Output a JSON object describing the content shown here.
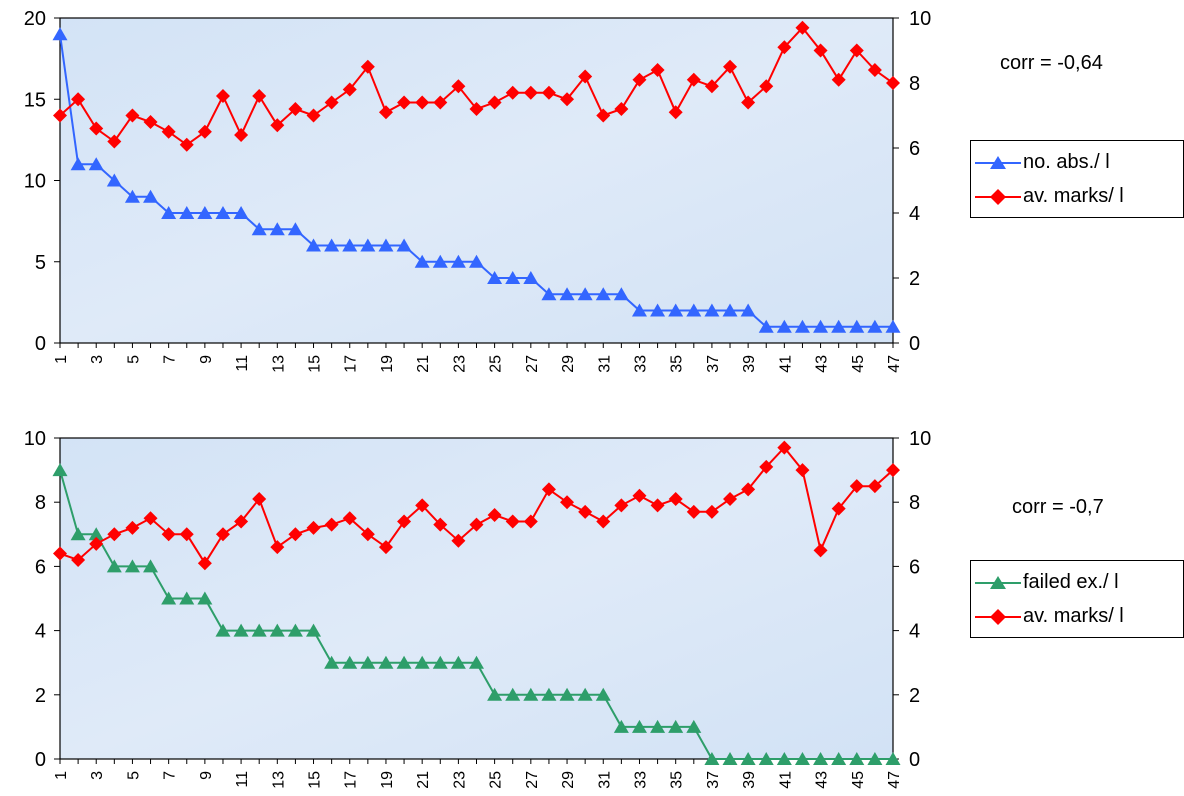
{
  "charts": [
    {
      "corr_text": "corr = -0,64",
      "legend": [
        "no. abs./ l",
        "av. marks/ l"
      ]
    },
    {
      "corr_text": "corr = -0,7",
      "legend": [
        "failed ex./ l",
        "av. marks/ l"
      ]
    }
  ],
  "colors": {
    "blue": "#3366ff",
    "red": "#ff0000",
    "green": "#2e9e6a",
    "plot_bg": "#d7e6f7"
  },
  "chart_data": [
    {
      "type": "line",
      "x": [
        1,
        2,
        3,
        4,
        5,
        6,
        7,
        8,
        9,
        10,
        11,
        12,
        13,
        14,
        15,
        16,
        17,
        18,
        19,
        20,
        21,
        22,
        23,
        24,
        25,
        26,
        27,
        28,
        29,
        30,
        31,
        32,
        33,
        34,
        35,
        36,
        37,
        38,
        39,
        40,
        41,
        42,
        43,
        44,
        45,
        46,
        47
      ],
      "xticks": [
        "1",
        "3",
        "5",
        "7",
        "9",
        "11",
        "13",
        "15",
        "17",
        "19",
        "21",
        "23",
        "25",
        "27",
        "29",
        "31",
        "33",
        "35",
        "37",
        "39",
        "41",
        "43",
        "45",
        "47"
      ],
      "y_left_lim": [
        0,
        20
      ],
      "y_left_ticks": [
        0,
        5,
        10,
        15,
        20
      ],
      "y_right_lim": [
        0,
        10
      ],
      "y_right_ticks": [
        0,
        2,
        4,
        6,
        8,
        10
      ],
      "series": [
        {
          "name": "no. abs./ l",
          "axis": "left",
          "marker": "triangle",
          "color": "#3366ff",
          "values": [
            19,
            11,
            11,
            10,
            9,
            9,
            8,
            8,
            8,
            8,
            8,
            7,
            7,
            7,
            6,
            6,
            6,
            6,
            6,
            6,
            5,
            5,
            5,
            5,
            4,
            4,
            4,
            3,
            3,
            3,
            3,
            3,
            2,
            2,
            2,
            2,
            2,
            2,
            2,
            1,
            1,
            1,
            1,
            1,
            1,
            1,
            1
          ]
        },
        {
          "name": "av. marks/ l",
          "axis": "right",
          "marker": "diamond",
          "color": "#ff0000",
          "values": [
            7.0,
            7.5,
            6.6,
            6.2,
            7.0,
            6.8,
            6.5,
            6.1,
            6.5,
            7.6,
            6.4,
            7.6,
            6.7,
            7.2,
            7.0,
            7.4,
            7.8,
            8.5,
            7.1,
            7.4,
            7.4,
            7.4,
            7.9,
            7.2,
            7.4,
            7.7,
            7.7,
            7.7,
            7.5,
            8.2,
            7.0,
            7.2,
            8.1,
            8.4,
            7.1,
            8.1,
            7.9,
            8.5,
            7.4,
            7.9,
            9.1,
            9.7,
            9.0,
            8.1,
            9.0,
            8.4,
            8.0
          ]
        }
      ]
    },
    {
      "type": "line",
      "x": [
        1,
        2,
        3,
        4,
        5,
        6,
        7,
        8,
        9,
        10,
        11,
        12,
        13,
        14,
        15,
        16,
        17,
        18,
        19,
        20,
        21,
        22,
        23,
        24,
        25,
        26,
        27,
        28,
        29,
        30,
        31,
        32,
        33,
        34,
        35,
        36,
        37,
        38,
        39,
        40,
        41,
        42,
        43,
        44,
        45,
        46,
        47
      ],
      "xticks": [
        "1",
        "3",
        "5",
        "7",
        "9",
        "11",
        "13",
        "15",
        "17",
        "19",
        "21",
        "23",
        "25",
        "27",
        "29",
        "31",
        "33",
        "35",
        "37",
        "39",
        "41",
        "43",
        "45",
        "47"
      ],
      "y_left_lim": [
        0,
        10
      ],
      "y_left_ticks": [
        0,
        2,
        4,
        6,
        8,
        10
      ],
      "y_right_lim": [
        0,
        10
      ],
      "y_right_ticks": [
        0,
        2,
        4,
        6,
        8,
        10
      ],
      "series": [
        {
          "name": "failed ex./ l",
          "axis": "left",
          "marker": "triangle",
          "color": "#2e9e6a",
          "values": [
            9,
            7,
            7,
            6,
            6,
            6,
            5,
            5,
            5,
            4,
            4,
            4,
            4,
            4,
            4,
            3,
            3,
            3,
            3,
            3,
            3,
            3,
            3,
            3,
            2,
            2,
            2,
            2,
            2,
            2,
            2,
            1,
            1,
            1,
            1,
            1,
            0,
            0,
            0,
            0,
            0,
            0,
            0,
            0,
            0,
            0,
            0
          ]
        },
        {
          "name": "av. marks/ l",
          "axis": "right",
          "marker": "diamond",
          "color": "#ff0000",
          "values": [
            6.4,
            6.2,
            6.7,
            7.0,
            7.2,
            7.5,
            7.0,
            7.0,
            6.1,
            7.0,
            7.4,
            8.1,
            6.6,
            7.0,
            7.2,
            7.3,
            7.5,
            7.0,
            6.6,
            7.4,
            7.9,
            7.3,
            6.8,
            7.3,
            7.6,
            7.4,
            7.4,
            8.4,
            8.0,
            7.7,
            7.4,
            7.9,
            8.2,
            7.9,
            8.1,
            7.7,
            7.7,
            8.1,
            8.4,
            9.1,
            9.7,
            9.0,
            6.5,
            7.8,
            8.5,
            8.5,
            9.0
          ]
        }
      ]
    }
  ]
}
